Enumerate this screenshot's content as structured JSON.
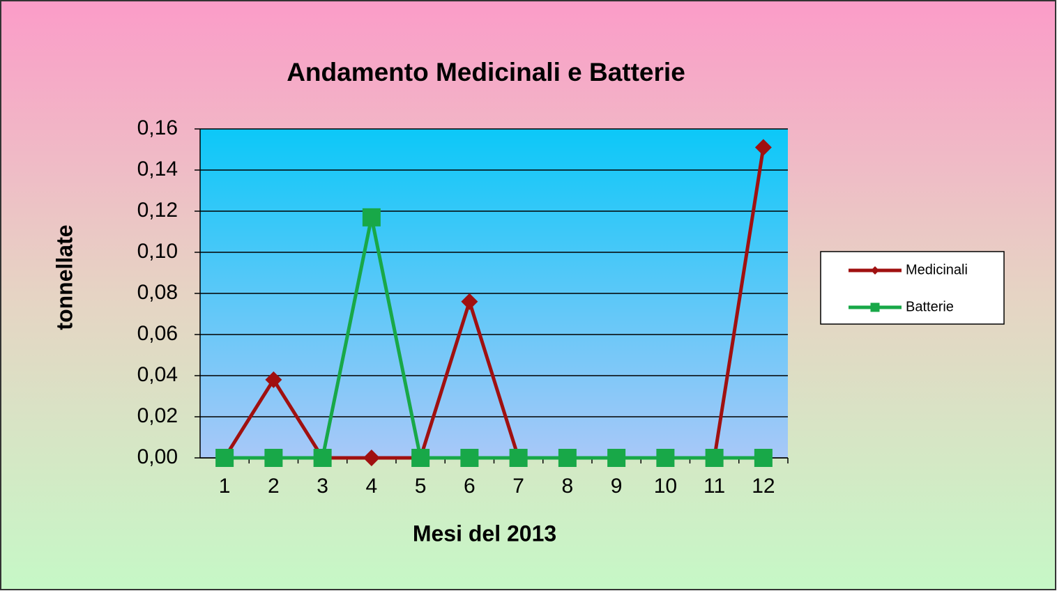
{
  "chart_data": {
    "type": "line",
    "title": "Andamento Medicinali e Batterie",
    "x_label": "Mesi del 2013",
    "y_label": "tonnellate",
    "categories": [
      "1",
      "2",
      "3",
      "4",
      "5",
      "6",
      "7",
      "8",
      "9",
      "10",
      "11",
      "12"
    ],
    "series": [
      {
        "name": "Medicinali",
        "color": "#a01010",
        "values": [
          0,
          0.038,
          0,
          0,
          0,
          0.076,
          0,
          0,
          0,
          0,
          0,
          0.151
        ]
      },
      {
        "name": "Batterie",
        "color": "#18a848",
        "values": [
          0,
          0,
          0,
          0.117,
          0,
          0,
          0,
          0,
          0,
          0,
          0,
          0
        ]
      }
    ],
    "ylim": [
      0,
      0.16
    ],
    "yticks": [
      {
        "value": 0,
        "label": "0,00"
      },
      {
        "value": 0.02,
        "label": "0,02"
      },
      {
        "value": 0.04,
        "label": "0,04"
      },
      {
        "value": 0.06,
        "label": "0,06"
      },
      {
        "value": 0.08,
        "label": "0,08"
      },
      {
        "value": 0.1,
        "label": "0,10"
      },
      {
        "value": 0.12,
        "label": "0,12"
      },
      {
        "value": 0.14,
        "label": "0,14"
      },
      {
        "value": 0.16,
        "label": "0,16"
      }
    ],
    "grid": true,
    "legend": "right"
  }
}
